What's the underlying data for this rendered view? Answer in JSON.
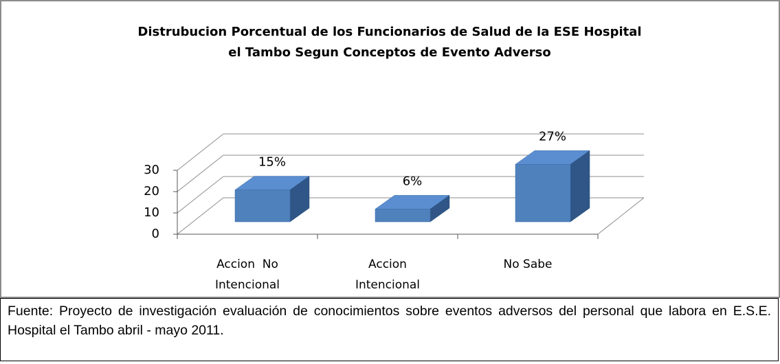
{
  "chart_data": {
    "type": "bar3d",
    "title": "Distrubucion Porcentual de los Funcionarios de Salud de la ESE Hospital\nel Tambo Segun Conceptos de Evento Adverso",
    "categories": [
      "Accion  No\nIntencional",
      "Accion\nIntencional",
      "No Sabe"
    ],
    "values": [
      15,
      6,
      27
    ],
    "value_labels": [
      "15%",
      "6%",
      "27%"
    ],
    "color": "#4f81bd",
    "ylim": [
      0,
      30
    ],
    "yticks": [
      0,
      10,
      20,
      30
    ],
    "grid": true
  },
  "caption": "Fuente: Proyecto de investigación evaluación de conocimientos sobre eventos adversos del personal que labora en E.S.E. Hospital el Tambo abril - mayo  2011."
}
